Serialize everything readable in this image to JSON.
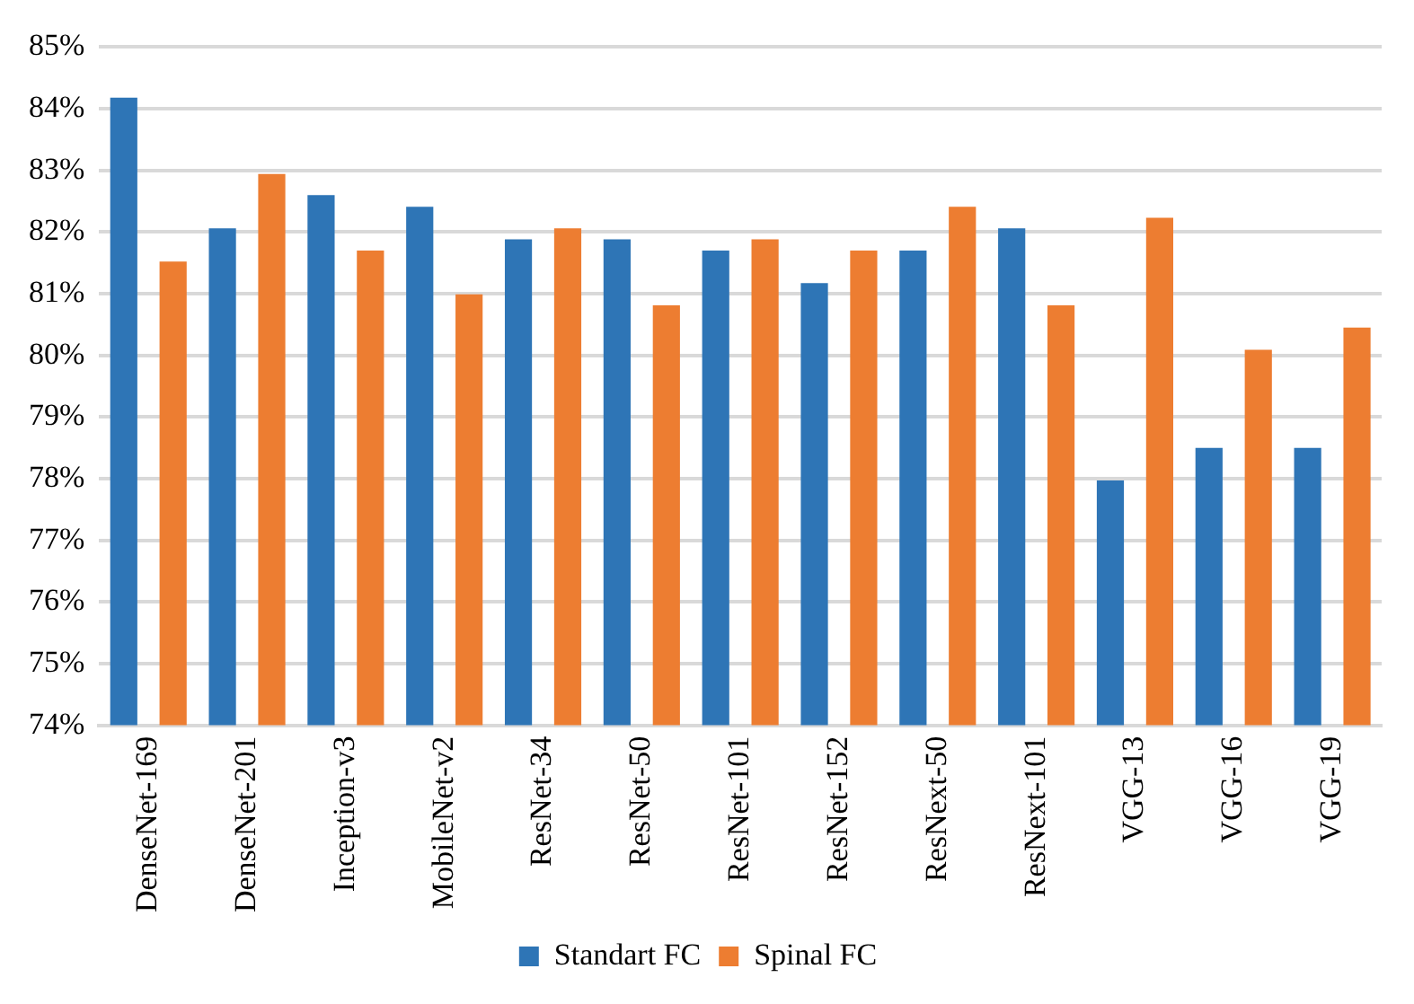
{
  "chart_data": {
    "type": "bar",
    "categories": [
      "DenseNet-169",
      "DenseNet-201",
      "Inception-v3",
      "MobileNet-v2",
      "ResNet-34",
      "ResNet-50",
      "ResNet-101",
      "ResNet-152",
      "ResNext-50",
      "ResNext-101",
      "VGG-13",
      "VGG-16",
      "VGG-19"
    ],
    "series": [
      {
        "name": "Standart FC",
        "color": "#2e75b6",
        "values": [
          84.18,
          82.06,
          82.6,
          82.41,
          81.88,
          81.88,
          81.7,
          81.17,
          81.7,
          82.06,
          77.97,
          78.5,
          78.5
        ]
      },
      {
        "name": "Spinal FC",
        "color": "#ed7d31",
        "values": [
          81.52,
          82.94,
          81.7,
          80.99,
          82.06,
          80.81,
          81.88,
          81.7,
          82.41,
          80.81,
          82.23,
          80.09,
          80.45
        ]
      }
    ],
    "ylim": [
      74,
      85
    ],
    "yticks": [
      {
        "value": 74,
        "label": "74%"
      },
      {
        "value": 75,
        "label": "75%"
      },
      {
        "value": 76,
        "label": "76%"
      },
      {
        "value": 77,
        "label": "77%"
      },
      {
        "value": 78,
        "label": "78%"
      },
      {
        "value": 79,
        "label": "79%"
      },
      {
        "value": 80,
        "label": "80%"
      },
      {
        "value": 81,
        "label": "81%"
      },
      {
        "value": 82,
        "label": "82%"
      },
      {
        "value": 83,
        "label": "83%"
      },
      {
        "value": 84,
        "label": "84%"
      },
      {
        "value": 85,
        "label": "85%"
      }
    ],
    "grid": "y",
    "legend": "bottom"
  }
}
